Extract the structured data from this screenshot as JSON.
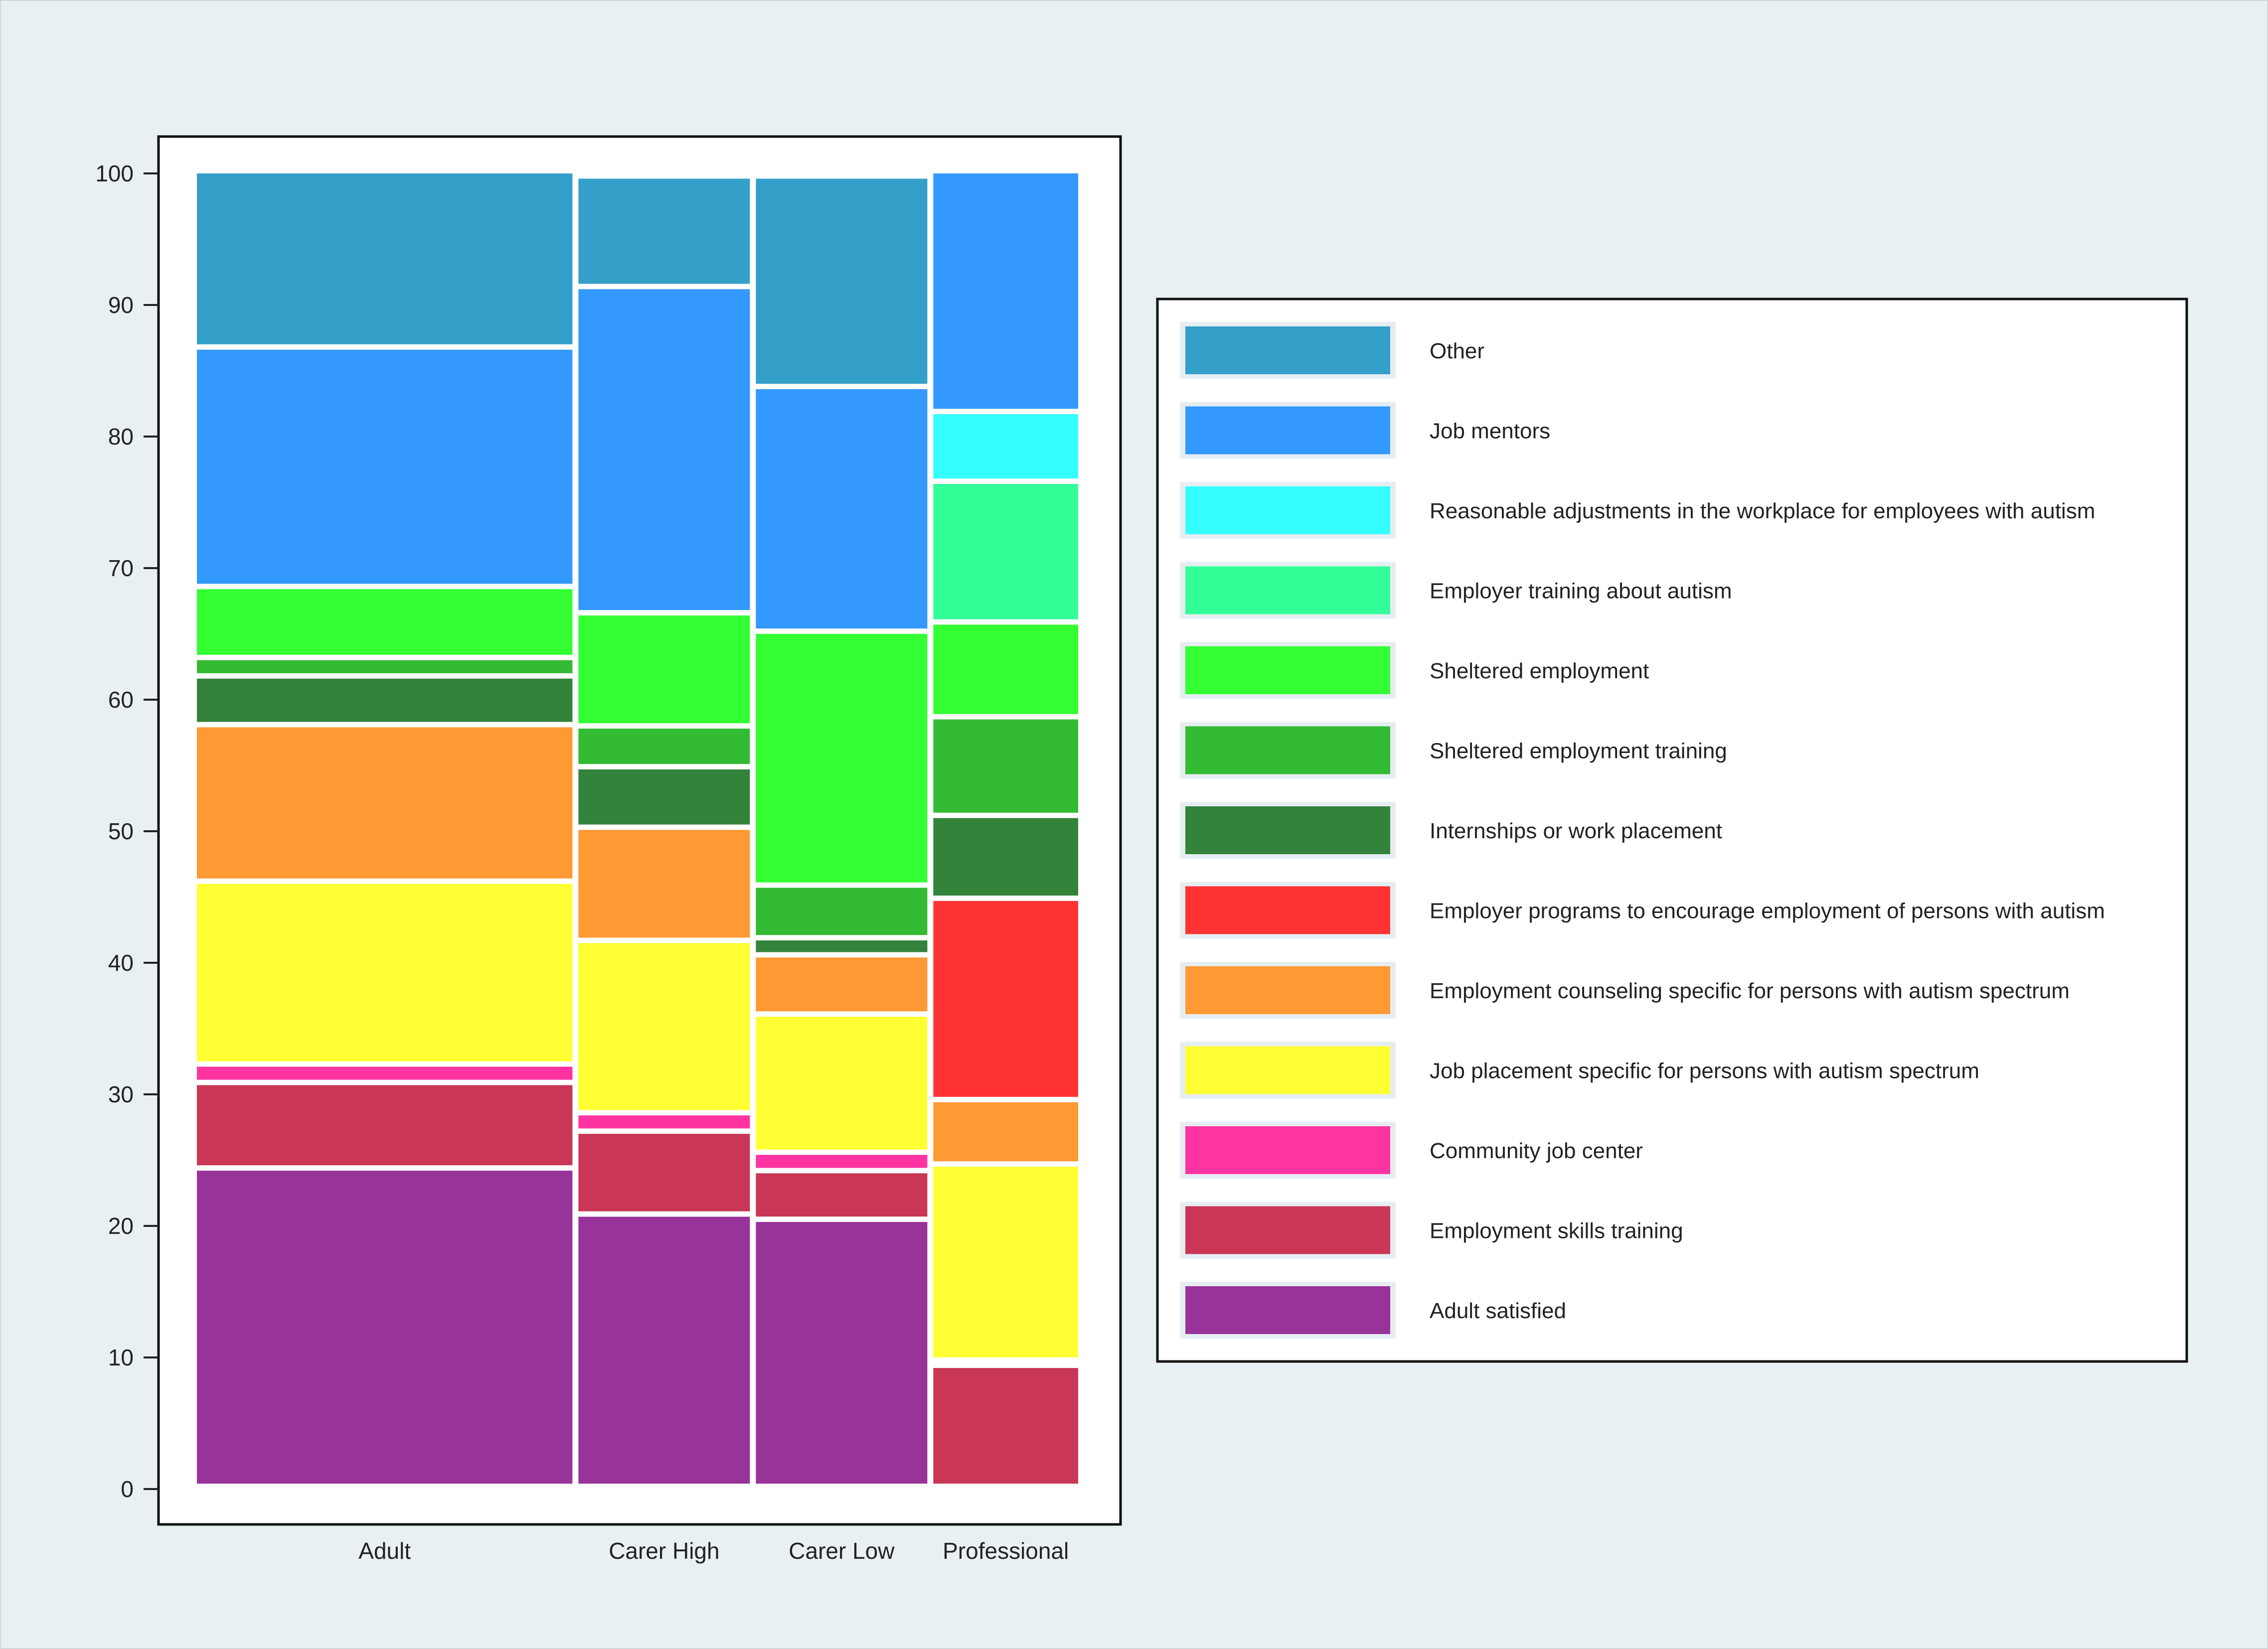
{
  "chart_data": {
    "type": "mosaic",
    "title": "",
    "xlabel": "",
    "ylabel": "",
    "ylim": [
      0,
      100
    ],
    "yticks": [
      0,
      10,
      20,
      30,
      40,
      50,
      60,
      70,
      80,
      90,
      100
    ],
    "grid": false,
    "legend_position": "right",
    "colors": {
      "background": "#e9f0f3",
      "plot_background": "#ffffff",
      "gap": "#e6eef2"
    },
    "categories": [
      "Adult",
      "Carer High",
      "Carer Low",
      "Professional"
    ],
    "category_widths": [
      43,
      20,
      20,
      17
    ],
    "series": [
      {
        "name": "Adult satisfied",
        "color": "#983399",
        "values": [
          24.2,
          20.7,
          20.3,
          0
        ]
      },
      {
        "name": "Employment skills training",
        "color": "#ca3655",
        "values": [
          6.5,
          6.3,
          3.7,
          9.2
        ]
      },
      {
        "name": "Community job center",
        "color": "#ff33a1",
        "values": [
          1.4,
          1.4,
          1.4,
          0.4
        ]
      },
      {
        "name": "Job placement specific for persons with autism spectrum",
        "color": "#ffff33",
        "values": [
          13.9,
          13.1,
          10.5,
          14.9
        ]
      },
      {
        "name": "Employment counseling specific for persons with autism spectrum",
        "color": "#ff9933",
        "values": [
          11.9,
          8.6,
          4.5,
          4.9
        ]
      },
      {
        "name": "Employer programs to encourage employment of persons with autism",
        "color": "#ff3333",
        "values": [
          0,
          0,
          0,
          15.3
        ]
      },
      {
        "name": "Internships or work placement",
        "color": "#33833b",
        "values": [
          3.7,
          4.6,
          1.3,
          6.3
        ]
      },
      {
        "name": "Sheltered employment training",
        "color": "#33bb33",
        "values": [
          1.4,
          3.1,
          4.0,
          7.5
        ]
      },
      {
        "name": "Sheltered employment",
        "color": "#33ff33",
        "values": [
          5.4,
          8.6,
          19.3,
          7.2
        ]
      },
      {
        "name": "Employer training about autism",
        "color": "#33ff99",
        "values": [
          0,
          0,
          0,
          10.7
        ]
      },
      {
        "name": "Reasonable adjustments in the workplace for employees with autism",
        "color": "#33ffff",
        "values": [
          0,
          0,
          0,
          5.3
        ]
      },
      {
        "name": "Job mentors",
        "color": "#3399ff",
        "values": [
          18.2,
          24.8,
          18.6,
          18.3
        ]
      },
      {
        "name": "Other",
        "color": "#34a0c9",
        "values": [
          13.4,
          8.4,
          16.0,
          0
        ]
      }
    ],
    "legend_order": [
      "Other",
      "Job mentors",
      "Reasonable adjustments in the workplace for employees with autism",
      "Employer training about autism",
      "Sheltered employment",
      "Sheltered employment training",
      "Internships or work placement",
      "Employer programs to encourage employment of persons with autism",
      "Employment counseling specific for persons with autism spectrum",
      "Job placement specific for persons with autism spectrum",
      "Community job center",
      "Employment skills training",
      "Adult satisfied"
    ]
  }
}
